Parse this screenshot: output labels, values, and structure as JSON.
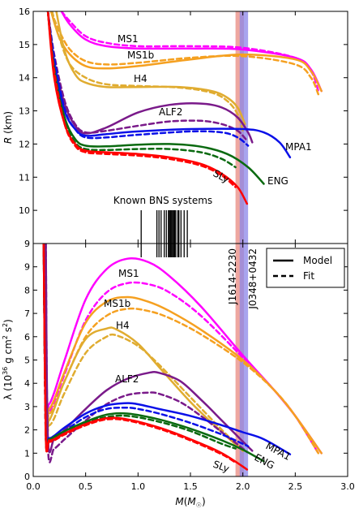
{
  "chart_data": [
    {
      "type": "line",
      "panel": "top",
      "ylabel": "R (km)",
      "xlim": [
        0,
        3
      ],
      "ylim": [
        9,
        16
      ],
      "yticks": [
        9,
        10,
        11,
        12,
        13,
        14,
        15,
        16
      ],
      "annotation": "Known BNS systems",
      "bns_masses": [
        1.03,
        1.18,
        1.2,
        1.22,
        1.25,
        1.27,
        1.29,
        1.3,
        1.31,
        1.32,
        1.33,
        1.34,
        1.35,
        1.36,
        1.38,
        1.39,
        1.41,
        1.44,
        1.47
      ],
      "pulsar_bands": [
        {
          "name": "J1614-2230",
          "mass": 1.97,
          "err": 0.04,
          "color": "#e88a80"
        },
        {
          "name": "J0348+0432",
          "mass": 2.01,
          "err": 0.04,
          "color": "#8b85e8"
        }
      ],
      "series": [
        {
          "name": "MS1",
          "color": "#ff00ff",
          "model": {
            "x": [
              0.27,
              0.35,
              0.5,
              0.7,
              1.0,
              1.5,
              2.0,
              2.5,
              2.65,
              2.75
            ],
            "y": [
              16.0,
              15.6,
              15.15,
              14.95,
              14.88,
              14.88,
              14.85,
              14.6,
              14.25,
              13.6
            ]
          },
          "fit": {
            "x": [
              0.27,
              0.35,
              0.5,
              0.7,
              1.0,
              1.5,
              2.0,
              2.5,
              2.65,
              2.72
            ],
            "y": [
              16.0,
              15.7,
              15.25,
              15.05,
              14.95,
              14.95,
              14.9,
              14.6,
              14.2,
              13.6
            ]
          }
        },
        {
          "name": "MS1b",
          "color": "#f5a020",
          "model": {
            "x": [
              0.17,
              0.25,
              0.35,
              0.5,
              0.7,
              1.0,
              1.5,
              2.0,
              2.5,
              2.65,
              2.75
            ],
            "y": [
              16.0,
              15.2,
              14.7,
              14.35,
              14.28,
              14.35,
              14.55,
              14.7,
              14.55,
              14.2,
              13.6
            ]
          },
          "fit": {
            "x": [
              0.17,
              0.25,
              0.35,
              0.5,
              0.7,
              1.0,
              1.5,
              2.0,
              2.5,
              2.65,
              2.72
            ],
            "y": [
              16.0,
              15.4,
              14.85,
              14.5,
              14.4,
              14.45,
              14.6,
              14.65,
              14.4,
              14.0,
              13.5
            ]
          }
        },
        {
          "name": "H4",
          "color": "#e0ac30",
          "model": {
            "x": [
              0.22,
              0.3,
              0.4,
              0.5,
              0.7,
              1.0,
              1.4,
              1.7,
              1.85,
              1.95,
              2.02
            ],
            "y": [
              16.0,
              14.8,
              14.1,
              13.85,
              13.72,
              13.72,
              13.72,
              13.6,
              13.4,
              13.1,
              12.6
            ]
          },
          "fit": {
            "x": [
              0.18,
              0.25,
              0.35,
              0.5,
              0.7,
              1.0,
              1.4,
              1.7,
              1.85,
              1.95,
              2.0
            ],
            "y": [
              16.0,
              15.2,
              14.4,
              14.0,
              13.8,
              13.75,
              13.7,
              13.55,
              13.3,
              12.9,
              12.4
            ]
          }
        },
        {
          "name": "ALF2",
          "color": "#7a1a8a",
          "model": {
            "x": [
              0.14,
              0.2,
              0.3,
              0.4,
              0.5,
              0.7,
              1.0,
              1.3,
              1.6,
              1.8,
              1.95,
              2.05,
              2.09
            ],
            "y": [
              16.0,
              14.5,
              13.2,
              12.55,
              12.32,
              12.5,
              12.95,
              13.18,
              13.22,
              13.1,
              12.8,
              12.35,
              12.05
            ]
          },
          "fit": {
            "x": [
              0.14,
              0.2,
              0.3,
              0.4,
              0.5,
              0.7,
              1.0,
              1.3,
              1.6,
              1.8,
              1.95,
              2.04
            ],
            "y": [
              16.0,
              14.7,
              13.3,
              12.6,
              12.35,
              12.4,
              12.55,
              12.68,
              12.7,
              12.6,
              12.4,
              12.1
            ]
          }
        },
        {
          "name": "MPA1",
          "color": "#0a10e8",
          "model": {
            "x": [
              0.14,
              0.2,
              0.3,
              0.4,
              0.5,
              0.7,
              1.0,
              1.5,
              2.0,
              2.2,
              2.35,
              2.45
            ],
            "y": [
              16.0,
              14.4,
              13.0,
              12.45,
              12.25,
              12.3,
              12.38,
              12.45,
              12.45,
              12.35,
              12.05,
              11.6
            ]
          },
          "fit": {
            "x": [
              0.14,
              0.2,
              0.3,
              0.4,
              0.5,
              0.7,
              1.0,
              1.5,
              1.8,
              1.95,
              2.05
            ],
            "y": [
              16.0,
              14.6,
              13.05,
              12.45,
              12.2,
              12.2,
              12.28,
              12.38,
              12.35,
              12.2,
              11.95
            ]
          }
        },
        {
          "name": "ENG",
          "color": "#0a6a10",
          "model": {
            "x": [
              0.14,
              0.2,
              0.3,
              0.4,
              0.5,
              0.7,
              1.0,
              1.3,
              1.6,
              1.85,
              2.05,
              2.2
            ],
            "y": [
              16.0,
              14.2,
              12.8,
              12.15,
              11.95,
              11.93,
              11.98,
              12.0,
              11.92,
              11.7,
              11.3,
              10.8
            ]
          },
          "fit": {
            "x": [
              0.14,
              0.2,
              0.3,
              0.4,
              0.5,
              0.7,
              1.0,
              1.3,
              1.6,
              1.8,
              1.93
            ],
            "y": [
              16.0,
              14.3,
              12.7,
              12.05,
              11.85,
              11.82,
              11.85,
              11.85,
              11.75,
              11.55,
              11.3
            ]
          }
        },
        {
          "name": "SLy",
          "color": "#ff0000",
          "model": {
            "x": [
              0.14,
              0.2,
              0.3,
              0.4,
              0.5,
              0.7,
              1.0,
              1.3,
              1.6,
              1.8,
              1.95,
              2.04
            ],
            "y": [
              16.0,
              14.0,
              12.6,
              12.0,
              11.8,
              11.75,
              11.7,
              11.6,
              11.4,
              11.1,
              10.7,
              10.2
            ]
          },
          "fit": {
            "x": [
              0.14,
              0.2,
              0.3,
              0.4,
              0.5,
              0.7,
              1.0,
              1.3,
              1.6,
              1.8,
              1.93
            ],
            "y": [
              16.0,
              14.2,
              12.6,
              11.95,
              11.75,
              11.7,
              11.65,
              11.55,
              11.35,
              11.05,
              10.7
            ]
          }
        }
      ]
    },
    {
      "type": "line",
      "panel": "bottom",
      "xlabel": "M(M_☉)",
      "ylabel": "λ (10^36 g cm^2 s^2)",
      "xlim": [
        0,
        3
      ],
      "ylim": [
        0,
        10
      ],
      "xticks": [
        "0.0",
        "0.5",
        "1.0",
        "1.5",
        "2.0",
        "2.5",
        "3.0"
      ],
      "yticks": [
        0,
        1,
        2,
        3,
        4,
        5,
        6,
        7,
        8,
        9
      ],
      "legend": {
        "placement": "top-right",
        "entries": [
          {
            "label": "Model",
            "style": "solid"
          },
          {
            "label": "Fit",
            "style": "dashed"
          }
        ]
      },
      "pulsar_labels": [
        "J1614-2230",
        "J0348+0432"
      ],
      "series": [
        {
          "name": "MS1",
          "color": "#ff00ff",
          "model": {
            "x": [
              0.1,
              0.13,
              0.15,
              0.2,
              0.3,
              0.5,
              0.7,
              0.9,
              1.1,
              1.3,
              1.6,
              2.0,
              2.3,
              2.5,
              2.75
            ],
            "y": [
              10.0,
              3.4,
              3.1,
              3.6,
              5.0,
              7.6,
              8.9,
              9.35,
              9.2,
              8.6,
              7.3,
              5.2,
              3.7,
              2.6,
              1.0
            ]
          },
          "fit": {
            "x": [
              0.1,
              0.13,
              0.15,
              0.2,
              0.3,
              0.5,
              0.7,
              0.9,
              1.1,
              1.3,
              1.6,
              2.0,
              2.3,
              2.5,
              2.72
            ],
            "y": [
              10.0,
              3.3,
              2.8,
              3.2,
              4.4,
              6.7,
              7.9,
              8.3,
              8.25,
              7.9,
              6.9,
              5.1,
              3.7,
              2.6,
              1.0
            ]
          }
        },
        {
          "name": "MS1b",
          "color": "#f5a020",
          "model": {
            "x": [
              0.1,
              0.13,
              0.15,
              0.2,
              0.3,
              0.5,
              0.7,
              0.9,
              1.1,
              1.3,
              1.6,
              2.0,
              2.3,
              2.5,
              2.75
            ],
            "y": [
              10.0,
              3.2,
              2.9,
              3.3,
              4.5,
              6.6,
              7.5,
              7.7,
              7.5,
              7.1,
              6.3,
              5.0,
              3.7,
              2.6,
              1.0
            ]
          },
          "fit": {
            "x": [
              0.1,
              0.13,
              0.15,
              0.2,
              0.3,
              0.5,
              0.7,
              0.9,
              1.1,
              1.3,
              1.6,
              2.0,
              2.3,
              2.5,
              2.72
            ],
            "y": [
              10.0,
              3.0,
              2.7,
              3.0,
              4.1,
              6.0,
              6.9,
              7.2,
              7.1,
              6.8,
              6.1,
              4.9,
              3.7,
              2.6,
              1.0
            ]
          }
        },
        {
          "name": "H4",
          "color": "#e0ac30",
          "model": {
            "x": [
              0.1,
              0.13,
              0.15,
              0.2,
              0.3,
              0.5,
              0.7,
              0.8,
              1.0,
              1.2,
              1.5,
              1.8,
              2.0
            ],
            "y": [
              10.0,
              2.7,
              2.4,
              2.9,
              4.1,
              5.9,
              6.35,
              6.3,
              5.7,
              4.7,
              3.2,
              1.9,
              1.1
            ]
          },
          "fit": {
            "x": [
              0.1,
              0.13,
              0.15,
              0.2,
              0.3,
              0.5,
              0.7,
              0.8,
              1.0,
              1.2,
              1.5,
              1.8,
              2.0
            ],
            "y": [
              10.0,
              2.6,
              2.2,
              2.5,
              3.6,
              5.3,
              6.0,
              6.05,
              5.6,
              4.8,
              3.4,
              2.0,
              1.1
            ]
          }
        },
        {
          "name": "ALF2",
          "color": "#7a1a8a",
          "model": {
            "x": [
              0.12,
              0.14,
              0.2,
              0.3,
              0.5,
              0.7,
              0.9,
              1.1,
              1.2,
              1.4,
              1.6,
              1.8,
              2.0,
              2.09
            ],
            "y": [
              10.0,
              1.7,
              1.6,
              2.0,
              2.9,
              3.7,
              4.2,
              4.45,
              4.45,
              4.1,
              3.3,
              2.4,
              1.5,
              1.1
            ]
          },
          "fit": {
            "x": [
              0.12,
              0.14,
              0.2,
              0.3,
              0.5,
              0.7,
              0.9,
              1.1,
              1.2,
              1.4,
              1.6,
              1.8,
              2.0,
              2.04
            ],
            "y": [
              10.0,
              1.3,
              1.2,
              1.6,
              2.4,
              3.1,
              3.5,
              3.6,
              3.55,
              3.2,
              2.6,
              1.9,
              1.2,
              1.05
            ]
          }
        },
        {
          "name": "MPA1",
          "color": "#0a10e8",
          "model": {
            "x": [
              0.1,
              0.12,
              0.15,
              0.2,
              0.3,
              0.5,
              0.7,
              0.9,
              1.0,
              1.2,
              1.5,
              1.8,
              2.0,
              2.2,
              2.45
            ],
            "y": [
              10.0,
              1.9,
              1.65,
              1.75,
              2.1,
              2.7,
              3.05,
              3.15,
              3.1,
              2.9,
              2.6,
              2.2,
              1.9,
              1.6,
              0.95
            ]
          },
          "fit": {
            "x": [
              0.1,
              0.12,
              0.15,
              0.2,
              0.3,
              0.5,
              0.7,
              0.9,
              1.0,
              1.2,
              1.5,
              1.8,
              2.0,
              2.05
            ],
            "y": [
              10.0,
              1.8,
              1.5,
              1.6,
              1.95,
              2.55,
              2.9,
              2.95,
              2.9,
              2.7,
              2.3,
              1.8,
              1.4,
              1.3
            ]
          }
        },
        {
          "name": "ENG",
          "color": "#0a6a10",
          "model": {
            "x": [
              0.1,
              0.12,
              0.15,
              0.2,
              0.3,
              0.5,
              0.7,
              0.9,
              1.2,
              1.5,
              1.8,
              2.0,
              2.2
            ],
            "y": [
              10.0,
              1.8,
              1.6,
              1.7,
              1.95,
              2.35,
              2.65,
              2.7,
              2.45,
              2.05,
              1.55,
              1.15,
              0.65
            ]
          },
          "fit": {
            "x": [
              0.1,
              0.12,
              0.15,
              0.2,
              0.3,
              0.5,
              0.7,
              0.9,
              1.2,
              1.5,
              1.8,
              1.93
            ],
            "y": [
              10.0,
              1.75,
              1.55,
              1.6,
              1.85,
              2.3,
              2.55,
              2.6,
              2.35,
              1.95,
              1.4,
              1.2
            ]
          }
        },
        {
          "name": "SLy",
          "color": "#ff0000",
          "model": {
            "x": [
              0.1,
              0.12,
              0.15,
              0.2,
              0.3,
              0.5,
              0.7,
              0.9,
              1.2,
              1.5,
              1.8,
              2.04
            ],
            "y": [
              10.0,
              1.75,
              1.55,
              1.6,
              1.85,
              2.25,
              2.5,
              2.45,
              2.1,
              1.6,
              1.0,
              0.3
            ]
          },
          "fit": {
            "x": [
              0.1,
              0.12,
              0.15,
              0.2,
              0.3,
              0.5,
              0.7,
              0.9,
              1.2,
              1.5,
              1.8,
              1.93
            ],
            "y": [
              10.0,
              1.7,
              1.5,
              1.55,
              1.8,
              2.2,
              2.45,
              2.4,
              2.05,
              1.55,
              0.95,
              0.6
            ]
          }
        }
      ]
    }
  ],
  "top_labels": {
    "MS1": "MS1",
    "MS1b": "MS1b",
    "H4": "H4",
    "ALF2": "ALF2",
    "MPA1": "MPA1",
    "ENG": "ENG",
    "SLy": "SLy"
  },
  "bottom_labels": {
    "MS1": "MS1",
    "MS1b": "MS1b",
    "H4": "H4",
    "ALF2": "ALF2",
    "MPA1": "MPA1",
    "ENG": "ENG",
    "SLy": "SLy"
  }
}
